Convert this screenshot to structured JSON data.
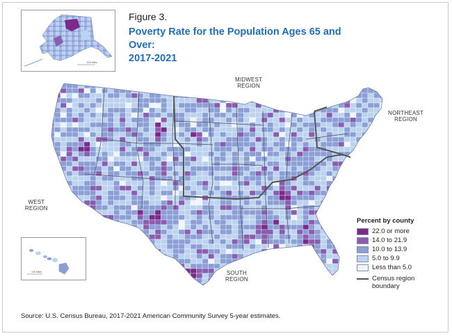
{
  "figure": {
    "label": "Figure 3.",
    "title_line1": "Poverty Rate for the Population Ages 65 and Over:",
    "title_line2": "2017-2021"
  },
  "regions": {
    "midwest_line1": "MIDWEST",
    "midwest_line2": "REGION",
    "northeast_line1": "NORTHEAST",
    "northeast_line2": "REGION",
    "west_line1": "WEST",
    "west_line2": "REGION",
    "south_line1": "SOUTH",
    "south_line2": "REGION"
  },
  "legend": {
    "title": "Percent by county",
    "items": [
      {
        "label": "22.0 or more",
        "color": "#7b2a8a"
      },
      {
        "label": "14.0 to 21.9",
        "color": "#8a5db0"
      },
      {
        "label": "10.0 to 13.9",
        "color": "#8b9fd6"
      },
      {
        "label": "5.0 to 9.9",
        "color": "#bcd3f0"
      },
      {
        "label": "Less than 5.0",
        "color": "#eef5fd"
      }
    ],
    "boundary_line1": "Census region",
    "boundary_line2": "boundary"
  },
  "source": "Source: U.S. Census Bureau, 2017-2021 American Community Survey 5-year estimates."
}
